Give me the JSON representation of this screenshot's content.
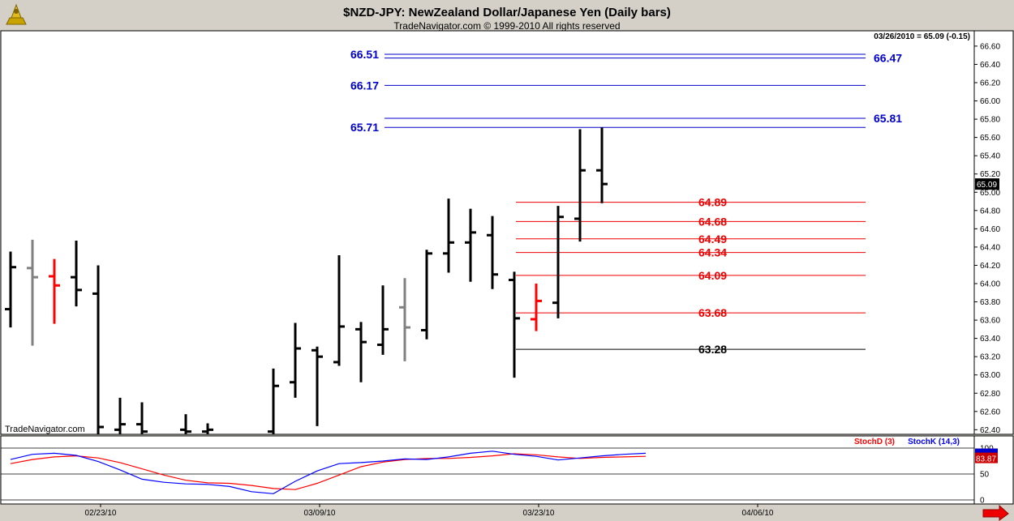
{
  "header": {
    "title": "$NZD-JPY:  NewZealand Dollar/Japanese Yen  (Daily bars)",
    "copyright": "TradeNavigator.com © 1999-2010 All rights reserved",
    "last_quote": "03/26/2010 = 65.09 (-0.15)",
    "watermark": "TradeNavigator.com"
  },
  "chart_data": [
    {
      "type": "bar",
      "subtype": "ohlc",
      "price_axis": {
        "ylim": [
          62.35,
          66.75
        ],
        "ticks": [
          "62.40",
          "62.60",
          "62.80",
          "63.00",
          "63.20",
          "63.40",
          "63.60",
          "63.80",
          "64.00",
          "64.20",
          "64.40",
          "64.60",
          "64.80",
          "65.00",
          "65.20",
          "65.40",
          "65.60",
          "65.80",
          "66.00",
          "66.20",
          "66.40",
          "66.60"
        ],
        "last_price_label": "65.09"
      },
      "x_axis": {
        "ticks": [
          {
            "label": "02/23/10",
            "index": 4
          },
          {
            "label": "03/09/10",
            "index": 14
          },
          {
            "label": "03/23/10",
            "index": 24
          },
          {
            "label": "04/06/10",
            "index": 34
          }
        ]
      },
      "bar_colors": {
        "normal": "#000000",
        "gray": "#808080",
        "red": "#ff0000"
      },
      "bars": [
        {
          "i": 0,
          "o": 63.72,
          "h": 64.35,
          "l": 63.52,
          "c": 64.18,
          "color": "normal"
        },
        {
          "i": 1,
          "o": 64.17,
          "h": 64.48,
          "l": 63.32,
          "c": 64.07,
          "color": "gray"
        },
        {
          "i": 2,
          "o": 64.08,
          "h": 64.27,
          "l": 63.56,
          "c": 63.98,
          "color": "red"
        },
        {
          "i": 3,
          "o": 64.07,
          "h": 64.47,
          "l": 63.75,
          "c": 63.93,
          "color": "normal"
        },
        {
          "i": 4,
          "o": 63.89,
          "h": 64.2,
          "l": 62.35,
          "c": 62.43,
          "color": "normal"
        },
        {
          "i": 5,
          "o": 62.4,
          "h": 62.75,
          "l": 62.35,
          "c": 62.46,
          "color": "normal"
        },
        {
          "i": 6,
          "o": 62.46,
          "h": 62.7,
          "l": 62.35,
          "c": 62.38,
          "color": "normal"
        },
        {
          "i": 8,
          "o": 62.4,
          "h": 62.57,
          "l": 62.35,
          "c": 62.38,
          "color": "normal"
        },
        {
          "i": 9,
          "o": 62.38,
          "h": 62.47,
          "l": 62.35,
          "c": 62.4,
          "color": "normal"
        },
        {
          "i": 12,
          "o": 62.38,
          "h": 63.07,
          "l": 62.35,
          "c": 62.88,
          "color": "normal"
        },
        {
          "i": 13,
          "o": 62.92,
          "h": 63.57,
          "l": 62.75,
          "c": 63.29,
          "color": "normal"
        },
        {
          "i": 14,
          "o": 63.27,
          "h": 63.31,
          "l": 62.44,
          "c": 63.2,
          "color": "normal"
        },
        {
          "i": 15,
          "o": 63.14,
          "h": 64.31,
          "l": 63.1,
          "c": 63.53,
          "color": "normal"
        },
        {
          "i": 16,
          "o": 63.5,
          "h": 63.58,
          "l": 62.92,
          "c": 63.36,
          "color": "normal"
        },
        {
          "i": 17,
          "o": 63.33,
          "h": 63.98,
          "l": 63.22,
          "c": 63.5,
          "color": "normal"
        },
        {
          "i": 18,
          "o": 63.74,
          "h": 64.06,
          "l": 63.15,
          "c": 63.52,
          "color": "gray"
        },
        {
          "i": 19,
          "o": 63.49,
          "h": 64.37,
          "l": 63.39,
          "c": 64.33,
          "color": "normal"
        },
        {
          "i": 20,
          "o": 64.33,
          "h": 64.93,
          "l": 64.12,
          "c": 64.45,
          "color": "normal"
        },
        {
          "i": 21,
          "o": 64.45,
          "h": 64.82,
          "l": 64.02,
          "c": 64.56,
          "color": "normal"
        },
        {
          "i": 22,
          "o": 64.53,
          "h": 64.74,
          "l": 63.94,
          "c": 64.1,
          "color": "normal"
        },
        {
          "i": 23,
          "o": 64.04,
          "h": 64.13,
          "l": 62.97,
          "c": 63.62,
          "color": "normal"
        },
        {
          "i": 24,
          "o": 63.61,
          "h": 64.0,
          "l": 63.48,
          "c": 63.81,
          "color": "red"
        },
        {
          "i": 25,
          "o": 63.79,
          "h": 64.85,
          "l": 63.62,
          "c": 64.73,
          "color": "normal"
        },
        {
          "i": 26,
          "o": 64.71,
          "h": 65.69,
          "l": 64.46,
          "c": 65.24,
          "color": "normal"
        },
        {
          "i": 27,
          "o": 65.24,
          "h": 65.71,
          "l": 64.88,
          "c": 65.09,
          "color": "normal"
        }
      ],
      "levels": [
        {
          "value": 66.51,
          "label": "66.51",
          "side": "left",
          "color": "#0000cc"
        },
        {
          "value": 66.47,
          "label": "66.47",
          "side": "right",
          "color": "#0000cc"
        },
        {
          "value": 66.17,
          "label": "66.17",
          "side": "left",
          "color": "#0000cc"
        },
        {
          "value": 65.81,
          "label": "65.81",
          "side": "right",
          "color": "#0000cc"
        },
        {
          "value": 65.71,
          "label": "65.71",
          "side": "left",
          "color": "#0000cc"
        },
        {
          "value": 64.89,
          "label": "64.89",
          "side": "right",
          "color": "#ee0000",
          "short": true
        },
        {
          "value": 64.68,
          "label": "64.68",
          "side": "right",
          "color": "#ee0000",
          "short": true
        },
        {
          "value": 64.49,
          "label": "64.49",
          "side": "right",
          "color": "#ee0000",
          "short": true
        },
        {
          "value": 64.34,
          "label": "64.34",
          "side": "right",
          "color": "#ee0000",
          "short": true
        },
        {
          "value": 64.09,
          "label": "64.09",
          "side": "right",
          "color": "#ee0000",
          "short": true
        },
        {
          "value": 63.68,
          "label": "63.68",
          "side": "right",
          "color": "#ee0000",
          "short": true
        },
        {
          "value": 63.28,
          "label": "63.28",
          "side": "right",
          "color": "#000000",
          "short": true
        }
      ]
    },
    {
      "type": "line",
      "ylim": [
        0,
        100
      ],
      "ticks": [
        "0",
        "50",
        "100"
      ],
      "value_label": "83.87",
      "series": [
        {
          "name": "StochD (3)",
          "color": "#ff0000",
          "values": [
            70,
            78,
            83,
            85,
            81,
            72,
            60,
            48,
            38,
            33,
            32,
            28,
            22,
            20,
            32,
            48,
            64,
            73,
            78,
            80,
            80,
            82,
            85,
            89,
            87,
            83,
            80,
            82,
            83,
            84
          ]
        },
        {
          "name": "StochK (14,3)",
          "color": "#0000ff",
          "values": [
            78,
            88,
            90,
            86,
            74,
            58,
            40,
            34,
            31,
            30,
            26,
            16,
            12,
            36,
            56,
            70,
            72,
            75,
            79,
            78,
            83,
            90,
            94,
            88,
            84,
            77,
            81,
            85,
            88,
            90
          ]
        }
      ]
    }
  ]
}
